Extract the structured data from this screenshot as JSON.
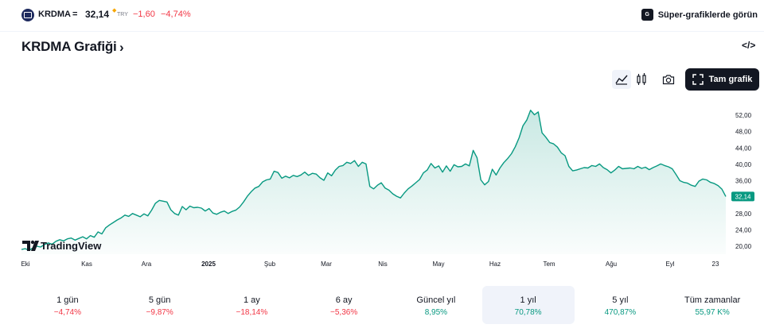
{
  "topbar": {
    "symbol": "KRDMA",
    "separator": "=",
    "price": "32,14",
    "currency": "TRY",
    "change": "−1,60",
    "change_percent": "−4,74%",
    "promo_icon_text": "G",
    "promo_label": "Süper-grafiklerde görün"
  },
  "header": {
    "title": "KRDMA Grafiği",
    "embed_label": "</>"
  },
  "toolbar": {
    "full_chart_label": "Tam grafik",
    "icons": [
      "area-chart-icon",
      "candles-icon",
      "camera-icon",
      "fullscreen-icon"
    ]
  },
  "chart_data": {
    "type": "area",
    "x_axis_labels": [
      "Eki",
      "Kas",
      "Ara",
      "2025",
      "Şub",
      "Mar",
      "Nis",
      "May",
      "Haz",
      "Tem",
      "Ağu",
      "Eyl",
      "23"
    ],
    "y_axis_labels": [
      "52,00",
      "48,00",
      "44,00",
      "40,00",
      "36,00",
      "32,00",
      "28,00",
      "24,00",
      "20,00"
    ],
    "ylim": [
      19,
      56
    ],
    "last_value": 32.14,
    "last_value_label": "32,14",
    "series": [
      {
        "values": [
          19.2,
          19.4,
          19.0,
          19.6,
          20.0,
          19.8,
          20.4,
          20.8,
          20.5,
          21.2,
          21.6,
          21.3,
          21.8,
          22.0,
          21.5,
          21.9,
          22.3,
          21.8,
          22.6,
          22.2,
          23.5,
          23.0,
          24.5,
          25.2,
          25.8,
          26.4,
          26.9,
          27.6,
          27.3,
          28.0,
          27.6,
          27.2,
          27.9,
          27.4,
          28.8,
          30.5,
          31.2,
          31.0,
          30.8,
          28.9,
          28.0,
          27.6,
          29.7,
          28.9,
          29.8,
          29.4,
          29.5,
          29.3,
          28.6,
          29.2,
          28.1,
          27.8,
          28.3,
          28.6,
          28.0,
          28.5,
          28.8,
          29.6,
          30.8,
          32.2,
          33.3,
          34.2,
          34.6,
          35.7,
          36.2,
          36.4,
          38.3,
          38.0,
          36.6,
          37.1,
          36.7,
          37.3,
          37.0,
          37.4,
          38.1,
          37.3,
          37.8,
          37.6,
          36.7,
          36.1,
          37.9,
          37.2,
          38.6,
          39.5,
          39.7,
          40.5,
          40.2,
          40.9,
          39.5,
          40.5,
          40.1,
          34.6,
          34.0,
          34.9,
          35.5,
          34.2,
          33.7,
          32.8,
          32.2,
          31.8,
          33.0,
          34.0,
          34.7,
          35.5,
          36.3,
          37.9,
          38.6,
          40.2,
          39.1,
          39.6,
          38.1,
          39.6,
          38.3,
          39.9,
          39.4,
          39.5,
          40.1,
          39.6,
          43.4,
          41.6,
          36.2,
          35.0,
          35.8,
          38.8,
          37.4,
          39.1,
          40.4,
          41.4,
          42.6,
          44.3,
          46.5,
          49.4,
          50.8,
          53.2,
          52.1,
          52.8,
          47.7,
          46.6,
          45.3,
          45.0,
          44.2,
          42.8,
          42.1,
          39.5,
          38.4,
          38.6,
          38.9,
          39.2,
          39.1,
          39.7,
          39.5,
          40.1,
          39.2,
          38.7,
          37.9,
          38.6,
          39.5,
          38.9,
          39.0,
          39.1,
          38.9,
          39.5,
          39.0,
          39.3,
          38.7,
          39.2,
          39.6,
          40.1,
          39.7,
          39.4,
          38.9,
          37.5,
          36.0,
          35.6,
          35.4,
          34.9,
          34.6,
          35.9,
          36.4,
          36.2,
          35.6,
          35.3,
          34.8,
          33.9,
          32.14
        ]
      }
    ]
  },
  "watermark": {
    "text": "TradingView"
  },
  "periods": [
    {
      "label": "1 gün",
      "value": "−4,74%",
      "trend": "neg"
    },
    {
      "label": "5 gün",
      "value": "−9,87%",
      "trend": "neg"
    },
    {
      "label": "1 ay",
      "value": "−18,14%",
      "trend": "neg"
    },
    {
      "label": "6 ay",
      "value": "−5,36%",
      "trend": "neg"
    },
    {
      "label": "Güncel yıl",
      "value": "8,95%",
      "trend": "pos"
    },
    {
      "label": "1 yıl",
      "value": "70,78%",
      "trend": "pos"
    },
    {
      "label": "5 yıl",
      "value": "470,87%",
      "trend": "pos"
    },
    {
      "label": "Tüm zamanlar",
      "value": "55,97 K%",
      "trend": "pos"
    }
  ],
  "colors": {
    "line": "#089981",
    "negative": "#f23645",
    "positive": "#089981",
    "dark": "#131722"
  }
}
